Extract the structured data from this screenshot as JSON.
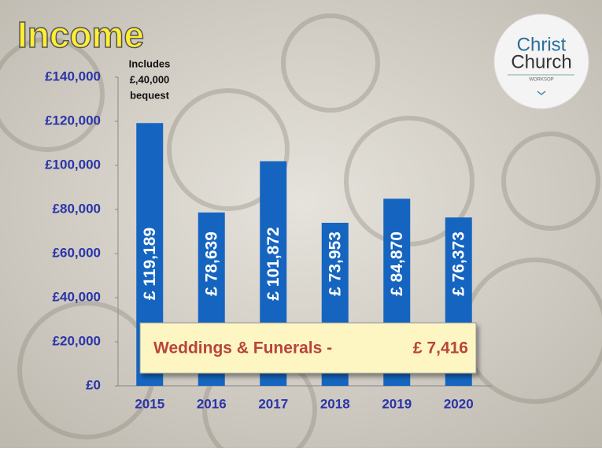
{
  "chart_data": {
    "type": "bar",
    "title": "Income",
    "categories": [
      "2015",
      "2016",
      "2017",
      "2018",
      "2019",
      "2020"
    ],
    "values": [
      119189,
      78639,
      101872,
      73953,
      84870,
      76373
    ],
    "value_labels": [
      "£ 119,189",
      "£ 78,639",
      "£ 101,872",
      "£ 73,953",
      "£ 84,870",
      "£ 76,373"
    ],
    "color": "#1565c0",
    "ylim": [
      0,
      140000
    ],
    "yticks": [
      {
        "value": 0,
        "label": "£0"
      },
      {
        "value": 20000,
        "label": "£20,000"
      },
      {
        "value": 40000,
        "label": "£40,000"
      },
      {
        "value": 60000,
        "label": "£60,000"
      },
      {
        "value": 80000,
        "label": "£80,000"
      },
      {
        "value": 100000,
        "label": "£100,000"
      },
      {
        "value": 120000,
        "label": "£120,000"
      },
      {
        "value": 140000,
        "label": "£140,000"
      }
    ],
    "grid": false,
    "annotation": [
      "Includes",
      "£,40,000",
      "bequest"
    ],
    "callout": {
      "label": "Weddings & Funerals -",
      "amount": "£ 7,416"
    }
  },
  "logo": {
    "line1": "Christ",
    "line2": "Church",
    "line3": "WORKSOP"
  }
}
